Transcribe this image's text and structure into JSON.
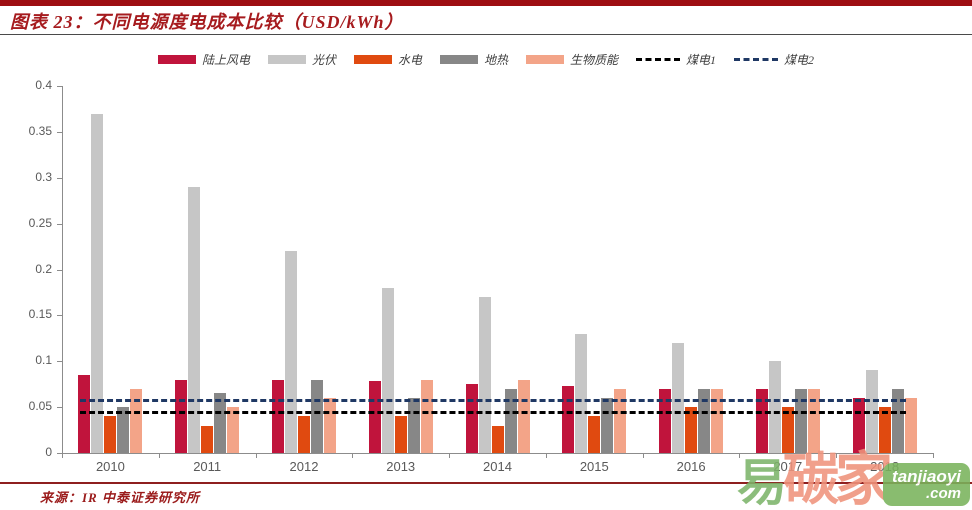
{
  "header": {
    "title": "图表 23：不同电源度电成本比较（USD/kWh）",
    "accent_color": "#9e0e12",
    "title_color": "#a61b1e"
  },
  "legend": [
    {
      "key": "onshore-wind",
      "label": "陆上风电",
      "color": "#c0143c",
      "type": "bar"
    },
    {
      "key": "solar-pv",
      "label": "光伏",
      "color": "#c6c6c6",
      "type": "bar"
    },
    {
      "key": "hydro",
      "label": "水电",
      "color": "#e04a10",
      "type": "bar"
    },
    {
      "key": "geothermal",
      "label": "地热",
      "color": "#878787",
      "type": "bar"
    },
    {
      "key": "biomass",
      "label": "生物质能",
      "color": "#f3a488",
      "type": "bar"
    },
    {
      "key": "coal-1",
      "label": "煤电1",
      "color": "#000000",
      "type": "dash"
    },
    {
      "key": "coal-2",
      "label": "煤电2",
      "color": "#1f3864",
      "type": "dash"
    }
  ],
  "chart_data": {
    "type": "bar",
    "title": "不同电源度电成本比较（USD/kWh）",
    "xlabel": "",
    "ylabel": "",
    "categories": [
      "2010",
      "2011",
      "2012",
      "2013",
      "2014",
      "2015",
      "2016",
      "2017",
      "2018"
    ],
    "series": [
      {
        "key": "onshore-wind",
        "name": "陆上风电",
        "color": "#c0143c",
        "values": [
          0.085,
          0.08,
          0.08,
          0.078,
          0.075,
          0.073,
          0.07,
          0.07,
          0.06
        ]
      },
      {
        "key": "solar-pv",
        "name": "光伏",
        "color": "#c6c6c6",
        "values": [
          0.37,
          0.29,
          0.22,
          0.18,
          0.17,
          0.13,
          0.12,
          0.1,
          0.09
        ]
      },
      {
        "key": "hydro",
        "name": "水电",
        "color": "#e04a10",
        "values": [
          0.04,
          0.03,
          0.04,
          0.04,
          0.03,
          0.04,
          0.05,
          0.05,
          0.05
        ]
      },
      {
        "key": "geothermal",
        "name": "地热",
        "color": "#878787",
        "values": [
          0.05,
          0.065,
          0.08,
          0.06,
          0.07,
          0.06,
          0.07,
          0.07,
          0.07
        ]
      },
      {
        "key": "biomass",
        "name": "生物质能",
        "color": "#f3a488",
        "values": [
          0.07,
          0.05,
          0.06,
          0.08,
          0.08,
          0.07,
          0.07,
          0.07,
          0.06
        ]
      }
    ],
    "reference_lines": [
      {
        "key": "coal-1",
        "name": "煤电1",
        "value": 0.044,
        "color": "#000000",
        "style": "dashed"
      },
      {
        "key": "coal-2",
        "name": "煤电2",
        "value": 0.057,
        "color": "#1f3864",
        "style": "dashed"
      }
    ],
    "ylim": [
      0,
      0.4
    ],
    "yticks": [
      {
        "value": 0,
        "label": "0"
      },
      {
        "value": 0.05,
        "label": "0.05"
      },
      {
        "value": 0.1,
        "label": "0.1"
      },
      {
        "value": 0.15,
        "label": "0.15"
      },
      {
        "value": 0.2,
        "label": "0.2"
      },
      {
        "value": 0.25,
        "label": "0.25"
      },
      {
        "value": 0.3,
        "label": "0.3"
      },
      {
        "value": 0.35,
        "label": "0.35"
      },
      {
        "value": 0.4,
        "label": "0.4"
      }
    ],
    "grid": false,
    "legend_position": "top"
  },
  "footer": {
    "source": "来源：IR 中泰证券研究所",
    "line_color": "#8e1f1f",
    "text_color": "#9b1b1b"
  },
  "watermark": {
    "chars": [
      {
        "text": "易",
        "color": "#7db46a",
        "size": 50
      },
      {
        "text": "碳",
        "color": "#f0947d",
        "size": 56
      },
      {
        "text": "家",
        "color": "#ef927b",
        "size": 58
      }
    ],
    "badge_line1": "tanjiaoyi",
    "badge_line2": ".com",
    "badge_color": "#79b35c"
  },
  "axis": {
    "label_color": "#595959",
    "line_color": "#8c8c8c"
  }
}
